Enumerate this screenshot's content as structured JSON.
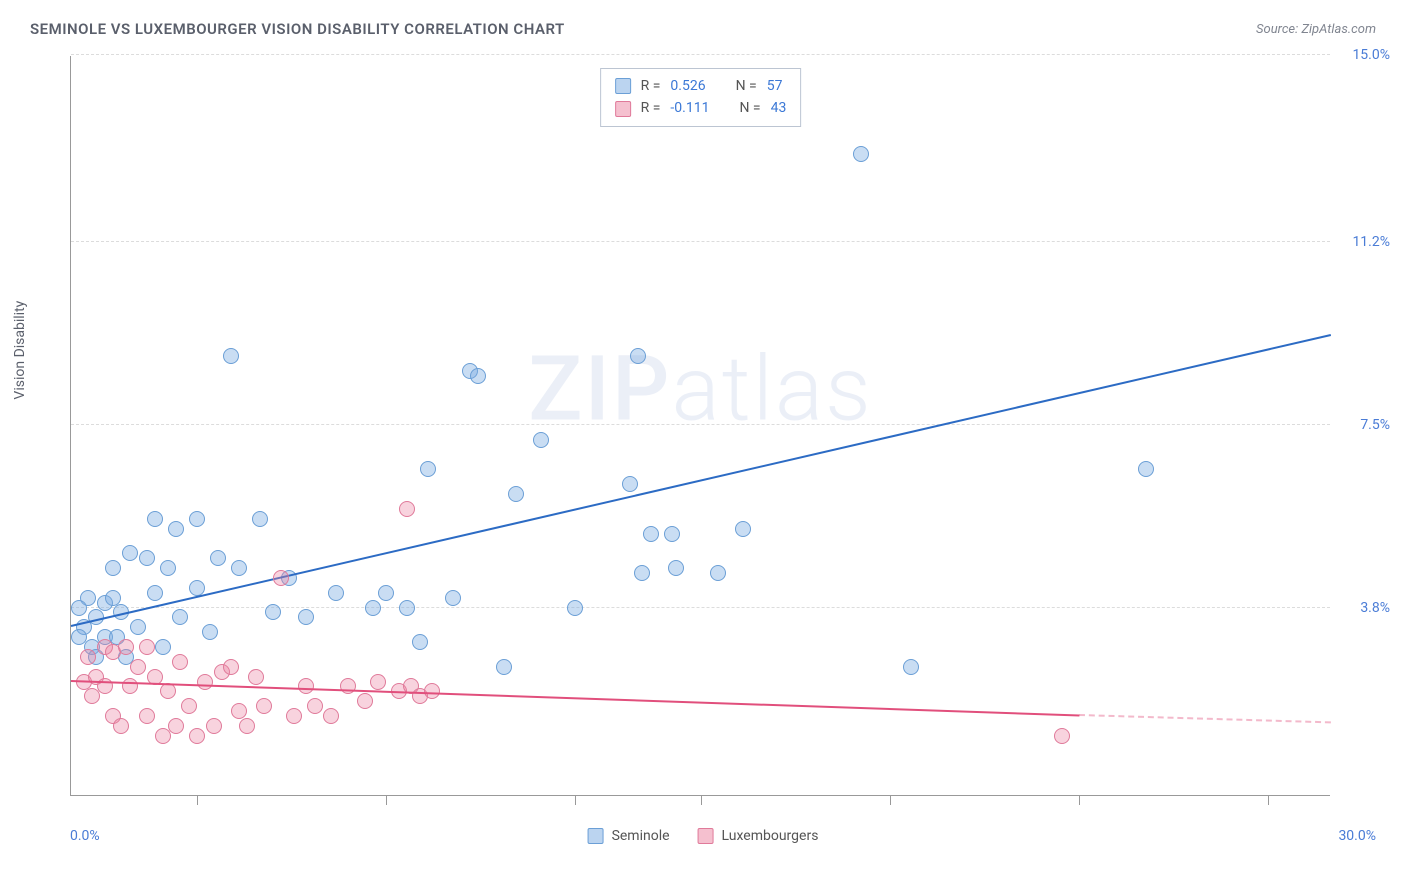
{
  "header": {
    "title": "SEMINOLE VS LUXEMBOURGER VISION DISABILITY CORRELATION CHART",
    "source_prefix": "Source: ",
    "source_name": "ZipAtlas.com"
  },
  "chart": {
    "type": "scatter",
    "ylabel": "Vision Disability",
    "watermark": "ZIPatlas",
    "xlim": [
      0,
      30
    ],
    "ylim": [
      0,
      15
    ],
    "x_min_label": "0.0%",
    "x_max_label": "30.0%",
    "x_tick_positions": [
      3,
      7.5,
      12,
      15,
      19.5,
      24,
      28.5
    ],
    "y_gridlines": [
      {
        "v": 15.0,
        "label": "15.0%"
      },
      {
        "v": 11.2,
        "label": "11.2%"
      },
      {
        "v": 7.5,
        "label": "7.5%"
      },
      {
        "v": 3.8,
        "label": "3.8%"
      }
    ],
    "grid_color": "#dcdcdc",
    "background_color": "#ffffff",
    "series": [
      {
        "name": "Seminole",
        "color": "#78aae1",
        "border": "#6b9fd6",
        "R": "0.526",
        "N": "57",
        "points": [
          [
            0.3,
            3.4
          ],
          [
            0.4,
            4.0
          ],
          [
            0.5,
            3.0
          ],
          [
            0.6,
            3.6
          ],
          [
            0.6,
            2.8
          ],
          [
            0.8,
            3.9
          ],
          [
            0.8,
            3.2
          ],
          [
            1.0,
            4.0
          ],
          [
            1.0,
            4.6
          ],
          [
            1.1,
            3.2
          ],
          [
            1.2,
            3.7
          ],
          [
            1.3,
            2.8
          ],
          [
            1.4,
            4.9
          ],
          [
            1.6,
            3.4
          ],
          [
            1.8,
            4.8
          ],
          [
            2.0,
            5.6
          ],
          [
            2.0,
            4.1
          ],
          [
            2.2,
            3.0
          ],
          [
            2.3,
            4.6
          ],
          [
            2.5,
            5.4
          ],
          [
            2.6,
            3.6
          ],
          [
            3.0,
            5.6
          ],
          [
            3.0,
            4.2
          ],
          [
            3.3,
            3.3
          ],
          [
            3.5,
            4.8
          ],
          [
            3.8,
            8.9
          ],
          [
            4.0,
            4.6
          ],
          [
            4.5,
            5.6
          ],
          [
            4.8,
            3.7
          ],
          [
            5.2,
            4.4
          ],
          [
            5.6,
            3.6
          ],
          [
            6.3,
            4.1
          ],
          [
            7.2,
            3.8
          ],
          [
            7.5,
            4.1
          ],
          [
            8.0,
            3.8
          ],
          [
            8.3,
            3.1
          ],
          [
            8.5,
            6.6
          ],
          [
            9.1,
            4.0
          ],
          [
            9.5,
            8.6
          ],
          [
            9.7,
            8.5
          ],
          [
            10.3,
            2.6
          ],
          [
            10.6,
            6.1
          ],
          [
            11.2,
            7.2
          ],
          [
            12.0,
            3.8
          ],
          [
            13.3,
            6.3
          ],
          [
            13.5,
            8.9
          ],
          [
            13.6,
            4.5
          ],
          [
            13.8,
            5.3
          ],
          [
            14.3,
            5.3
          ],
          [
            14.4,
            4.6
          ],
          [
            15.4,
            4.5
          ],
          [
            16.0,
            5.4
          ],
          [
            18.8,
            13.0
          ],
          [
            20.0,
            2.6
          ],
          [
            25.6,
            6.6
          ],
          [
            0.2,
            3.8
          ],
          [
            0.2,
            3.2
          ]
        ],
        "trend": {
          "x1": 0,
          "y1": 3.4,
          "x2": 30,
          "y2": 9.3
        }
      },
      {
        "name": "Luxembourgers",
        "color": "#eb82a0",
        "border": "#e07a9a",
        "R": "-0.111",
        "N": "43",
        "points": [
          [
            0.3,
            2.3
          ],
          [
            0.4,
            2.8
          ],
          [
            0.5,
            2.0
          ],
          [
            0.6,
            2.4
          ],
          [
            0.8,
            2.2
          ],
          [
            0.8,
            3.0
          ],
          [
            1.0,
            1.6
          ],
          [
            1.0,
            2.9
          ],
          [
            1.2,
            1.4
          ],
          [
            1.3,
            3.0
          ],
          [
            1.4,
            2.2
          ],
          [
            1.6,
            2.6
          ],
          [
            1.8,
            1.6
          ],
          [
            1.8,
            3.0
          ],
          [
            2.0,
            2.4
          ],
          [
            2.2,
            1.2
          ],
          [
            2.3,
            2.1
          ],
          [
            2.5,
            1.4
          ],
          [
            2.6,
            2.7
          ],
          [
            2.8,
            1.8
          ],
          [
            3.0,
            1.2
          ],
          [
            3.2,
            2.3
          ],
          [
            3.4,
            1.4
          ],
          [
            3.6,
            2.5
          ],
          [
            3.8,
            2.6
          ],
          [
            4.0,
            1.7
          ],
          [
            4.2,
            1.4
          ],
          [
            4.4,
            2.4
          ],
          [
            4.6,
            1.8
          ],
          [
            5.0,
            4.4
          ],
          [
            5.3,
            1.6
          ],
          [
            5.6,
            2.2
          ],
          [
            5.8,
            1.8
          ],
          [
            6.2,
            1.6
          ],
          [
            6.6,
            2.2
          ],
          [
            7.0,
            1.9
          ],
          [
            7.3,
            2.3
          ],
          [
            7.8,
            2.1
          ],
          [
            8.0,
            5.8
          ],
          [
            8.1,
            2.2
          ],
          [
            8.3,
            2.0
          ],
          [
            8.6,
            2.1
          ],
          [
            23.6,
            1.2
          ]
        ],
        "trend": {
          "x1": 0,
          "y1": 2.3,
          "x2": 24,
          "y2": 1.6
        },
        "trend_dash": {
          "x1": 24,
          "y1": 1.6,
          "x2": 30,
          "y2": 1.45
        }
      }
    ],
    "legend": {
      "rn_labels": {
        "R": "R =",
        "N": "N ="
      },
      "bottom_labels": [
        "Seminole",
        "Luxembourgers"
      ]
    }
  }
}
